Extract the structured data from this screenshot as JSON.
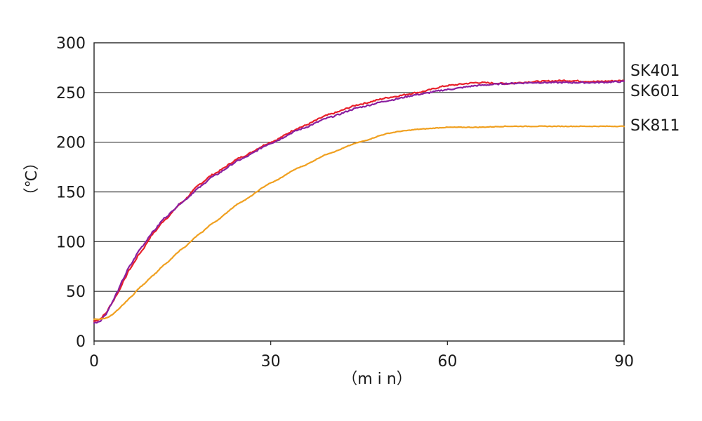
{
  "chart_data": {
    "type": "line",
    "xlabel": "（m i n）",
    "ylabel": "（℃）",
    "xlim": [
      0,
      90
    ],
    "ylim": [
      0,
      300
    ],
    "x_ticks": [
      0,
      30,
      60,
      90
    ],
    "y_ticks": [
      0,
      50,
      100,
      150,
      200,
      250,
      300
    ],
    "grid": "horizontal",
    "legend": "right end of lines",
    "series": [
      {
        "name": "SK401",
        "color": "#e8202a",
        "x": [
          0,
          1,
          2,
          3,
          4,
          5,
          6,
          8,
          10,
          12,
          15,
          18,
          20,
          25,
          30,
          35,
          40,
          45,
          50,
          55,
          60,
          65,
          70,
          75,
          80,
          85,
          90
        ],
        "y": [
          20,
          22,
          28,
          38,
          48,
          60,
          72,
          90,
          108,
          122,
          140,
          158,
          167,
          185,
          200,
          215,
          228,
          238,
          245,
          250,
          257,
          260,
          259,
          261,
          262,
          261,
          262
        ]
      },
      {
        "name": "SK601",
        "color": "#8a1fa0",
        "x": [
          0,
          1,
          2,
          3,
          4,
          5,
          6,
          8,
          10,
          12,
          15,
          18,
          20,
          25,
          30,
          35,
          40,
          45,
          50,
          55,
          60,
          65,
          70,
          75,
          80,
          85,
          90
        ],
        "y": [
          18,
          20,
          27,
          38,
          50,
          63,
          75,
          94,
          110,
          124,
          140,
          155,
          165,
          183,
          199,
          213,
          225,
          235,
          242,
          248,
          253,
          257,
          259,
          260,
          260,
          260,
          261
        ]
      },
      {
        "name": "SK811",
        "color": "#f0a020",
        "x": [
          0,
          1,
          2,
          3,
          4,
          5,
          6,
          8,
          10,
          12,
          15,
          18,
          20,
          25,
          30,
          35,
          40,
          45,
          50,
          52,
          55,
          60,
          65,
          70,
          75,
          80,
          85,
          90
        ],
        "y": [
          22,
          22,
          23,
          26,
          31,
          37,
          43,
          55,
          66,
          77,
          93,
          108,
          118,
          140,
          159,
          175,
          189,
          200,
          209,
          211,
          213,
          215,
          215,
          216,
          216,
          216,
          216,
          216
        ]
      }
    ]
  }
}
